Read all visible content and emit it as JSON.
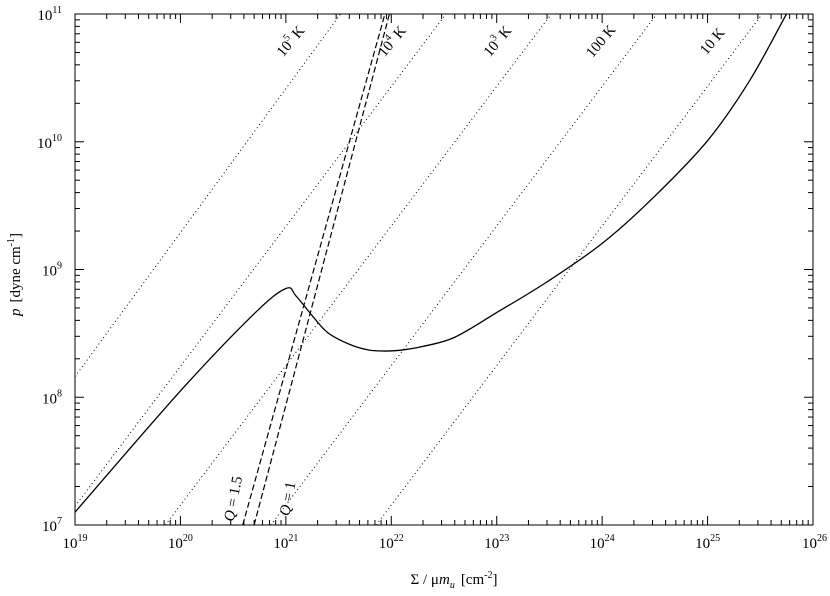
{
  "chart_data": {
    "type": "line",
    "title": "",
    "xscale": "log",
    "yscale": "log",
    "xlim": [
      1e+19,
      1e+26
    ],
    "ylim": [
      10000000.0,
      100000000000.0
    ],
    "xlabel": {
      "symbol": "Σ",
      "divider": " / ",
      "mu": "μ",
      "m": "m",
      "sub": "u",
      "unit_open": "[cm",
      "unit_exp": "-2",
      "unit_close": "]"
    },
    "ylabel": {
      "symbol": "p",
      "unit_open": "[dyne cm",
      "unit_exp": "-1",
      "unit_close": "]"
    },
    "xticks": [
      {
        "base": "10",
        "exp": "19",
        "value": 1e+19
      },
      {
        "base": "10",
        "exp": "20",
        "value": 1e+20
      },
      {
        "base": "10",
        "exp": "21",
        "value": 1e+21
      },
      {
        "base": "10",
        "exp": "22",
        "value": 1e+22
      },
      {
        "base": "10",
        "exp": "23",
        "value": 1e+23
      },
      {
        "base": "10",
        "exp": "24",
        "value": 1e+24
      },
      {
        "base": "10",
        "exp": "25",
        "value": 1e+25
      },
      {
        "base": "10",
        "exp": "26",
        "value": 1e+26
      }
    ],
    "yticks": [
      {
        "base": "10",
        "exp": "7",
        "value": 10000000.0
      },
      {
        "base": "10",
        "exp": "8",
        "value": 100000000.0
      },
      {
        "base": "10",
        "exp": "9",
        "value": 1000000000.0
      },
      {
        "base": "10",
        "exp": "10",
        "value": 10000000000.0
      },
      {
        "base": "10",
        "exp": "11",
        "value": 100000000000.0
      }
    ],
    "grid": false,
    "series": [
      {
        "style": "solid",
        "x": [
          1e+19,
          1e+20,
          5e+20,
          1e+21,
          1.25e+21,
          1.8e+21,
          2.5e+21,
          4e+21,
          6e+21,
          8.5e+21,
          1.2e+22,
          2e+22,
          4e+22,
          1e+23,
          3e+23,
          1e+24,
          3e+24,
          1e+25,
          2.5e+25,
          5.6e+25
        ],
        "y": [
          12600000.0,
          112000000.0,
          450000000.0,
          710000000.0,
          620000000.0,
          430000000.0,
          320000000.0,
          260000000.0,
          235000000.0,
          230000000.0,
          233000000.0,
          250000000.0,
          295000000.0,
          460000000.0,
          800000000.0,
          1600000000.0,
          3600000000.0,
          10200000000.0,
          30000000000.0,
          100000000000.0
        ]
      },
      {
        "label": "Q = 1.5",
        "label_parts": {
          "q": "Q",
          "rest": " = 1.5"
        },
        "style": "dashed",
        "x": [
          3.9e+20,
          8.7e+21
        ],
        "y": [
          10000000.0,
          100000000000.0
        ],
        "label_at": [
          3.5e+20,
          15800000.0
        ],
        "label_angle_deg": -79
      },
      {
        "label": "Q = 1",
        "label_parts": {
          "q": "Q",
          "rest": " = 1"
        },
        "style": "dashed",
        "x": [
          5e+20,
          9.6e+21
        ],
        "y": [
          10000000.0,
          100000000000.0
        ],
        "label_at": [
          1.15e+21,
          15800000.0
        ],
        "label_angle_deg": -79
      }
    ],
    "isotherms": [
      {
        "base": "10",
        "exp": "5",
        "unit": " K",
        "x": [
          1e+19,
          3.3e+21
        ],
        "y": [
          145000000.0,
          100000000000.0
        ],
        "label_at": [
          1.2e+21,
          58000000000.0
        ]
      },
      {
        "base": "10",
        "exp": "4",
        "unit": " K",
        "x": [
          1e+19,
          3.3e+22
        ],
        "y": [
          14000000.0,
          100000000000.0
        ],
        "label_at": [
          1.1e+22,
          58000000000.0
        ]
      },
      {
        "base": "10",
        "exp": "3",
        "unit": " K",
        "x": [
          7.2e+19,
          3.3e+23
        ],
        "y": [
          10000000.0,
          100000000000.0
        ],
        "label_at": [
          1.1e+23,
          58000000000.0
        ]
      },
      {
        "base": "",
        "exp": "",
        "unit": "100 K",
        "x": [
          7.2e+20,
          3.3e+24
        ],
        "y": [
          10000000.0,
          100000000000.0
        ],
        "label_at": [
          1.05e+24,
          58000000000.0
        ]
      },
      {
        "base": "",
        "exp": "",
        "unit": "10 K",
        "x": [
          7.2e+21,
          3.3e+25
        ],
        "y": [
          10000000.0,
          100000000000.0
        ],
        "label_at": [
          1.2e+25,
          58000000000.0
        ]
      }
    ]
  }
}
